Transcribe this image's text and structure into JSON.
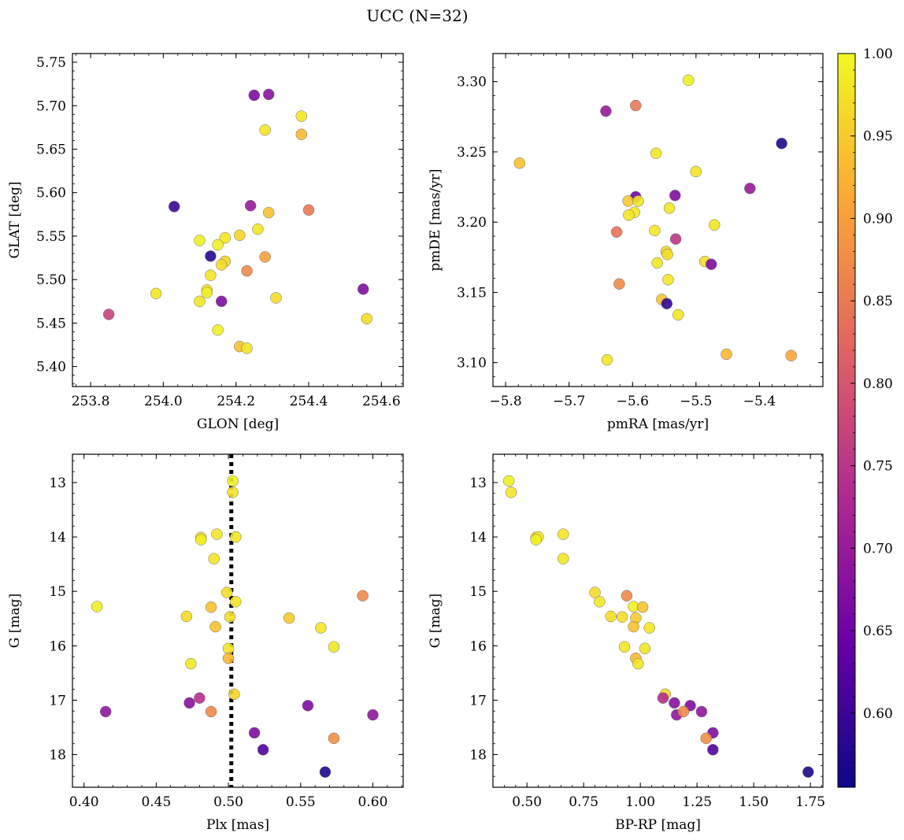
{
  "figure": {
    "title": "UCC (N=32)"
  },
  "colorbar": {
    "label": "",
    "range": [
      0.555,
      1.0
    ],
    "ticks": [
      "0.60",
      "0.65",
      "0.70",
      "0.75",
      "0.80",
      "0.85",
      "0.90",
      "0.95",
      "1.00"
    ],
    "tick_values": [
      0.6,
      0.65,
      0.7,
      0.75,
      0.8,
      0.85,
      0.9,
      0.95,
      1.0
    ],
    "colormap": "plasma",
    "colormap_stops": [
      "#0d0887",
      "#6a00a8",
      "#b12a90",
      "#e16462",
      "#fca636",
      "#f0f921"
    ]
  },
  "chart_data": [
    {
      "type": "scatter",
      "id": "glon-glat",
      "title": "",
      "xlabel": "GLON [deg]",
      "ylabel": "GLAT [deg]",
      "xlim": [
        253.75,
        254.66
      ],
      "ylim": [
        5.377,
        5.76
      ],
      "xticks": [
        253.8,
        254.0,
        254.2,
        254.4,
        254.6
      ],
      "xtick_labels": [
        "253.8",
        "254.0",
        "254.2",
        "254.4",
        "254.6"
      ],
      "yticks": [
        5.4,
        5.45,
        5.5,
        5.55,
        5.6,
        5.65,
        5.7,
        5.75
      ],
      "ytick_labels": [
        "5.40",
        "5.45",
        "5.50",
        "5.55",
        "5.60",
        "5.65",
        "5.70",
        "5.75"
      ],
      "y_inverted": false,
      "points": [
        {
          "x": 254.25,
          "y": 5.712,
          "c": 0.67
        },
        {
          "x": 254.29,
          "y": 5.713,
          "c": 0.68
        },
        {
          "x": 254.38,
          "y": 5.688,
          "c": 0.98
        },
        {
          "x": 254.28,
          "y": 5.672,
          "c": 0.98
        },
        {
          "x": 254.38,
          "y": 5.667,
          "c": 0.93
        },
        {
          "x": 254.03,
          "y": 5.584,
          "c": 0.6
        },
        {
          "x": 254.24,
          "y": 5.585,
          "c": 0.7
        },
        {
          "x": 254.29,
          "y": 5.577,
          "c": 0.94
        },
        {
          "x": 254.4,
          "y": 5.58,
          "c": 0.85
        },
        {
          "x": 254.26,
          "y": 5.558,
          "c": 0.98
        },
        {
          "x": 254.1,
          "y": 5.545,
          "c": 0.99
        },
        {
          "x": 254.17,
          "y": 5.548,
          "c": 0.98
        },
        {
          "x": 254.21,
          "y": 5.551,
          "c": 0.96
        },
        {
          "x": 254.15,
          "y": 5.54,
          "c": 0.99
        },
        {
          "x": 254.13,
          "y": 5.527,
          "c": 0.58
        },
        {
          "x": 254.28,
          "y": 5.526,
          "c": 0.9
        },
        {
          "x": 254.17,
          "y": 5.521,
          "c": 0.96
        },
        {
          "x": 254.16,
          "y": 5.517,
          "c": 0.97
        },
        {
          "x": 254.23,
          "y": 5.51,
          "c": 0.87
        },
        {
          "x": 254.13,
          "y": 5.505,
          "c": 0.98
        },
        {
          "x": 253.98,
          "y": 5.484,
          "c": 0.98
        },
        {
          "x": 254.12,
          "y": 5.488,
          "c": 0.97
        },
        {
          "x": 254.12,
          "y": 5.485,
          "c": 0.99
        },
        {
          "x": 254.1,
          "y": 5.475,
          "c": 0.98
        },
        {
          "x": 254.16,
          "y": 5.475,
          "c": 0.67
        },
        {
          "x": 254.31,
          "y": 5.479,
          "c": 0.97
        },
        {
          "x": 254.55,
          "y": 5.489,
          "c": 0.67
        },
        {
          "x": 253.85,
          "y": 5.46,
          "c": 0.77
        },
        {
          "x": 254.15,
          "y": 5.442,
          "c": 0.99
        },
        {
          "x": 254.56,
          "y": 5.455,
          "c": 0.97
        },
        {
          "x": 254.21,
          "y": 5.423,
          "c": 0.94
        },
        {
          "x": 254.23,
          "y": 5.421,
          "c": 0.98
        }
      ]
    },
    {
      "type": "scatter",
      "id": "pmra-pmde",
      "title": "",
      "xlabel": "pmRA [mas/yr]",
      "ylabel": "pmDE [mas/yr]",
      "xlim": [
        -5.82,
        -5.3
      ],
      "ylim": [
        3.083,
        3.32
      ],
      "xticks": [
        -5.8,
        -5.7,
        -5.6,
        -5.5,
        -5.4
      ],
      "xtick_labels": [
        "−5.8",
        "−5.7",
        "−5.6",
        "−5.5",
        "−5.4"
      ],
      "yticks": [
        3.1,
        3.15,
        3.2,
        3.25,
        3.3
      ],
      "ytick_labels": [
        "3.10",
        "3.15",
        "3.20",
        "3.25",
        "3.30"
      ],
      "y_inverted": false,
      "points": [
        {
          "x": -5.512,
          "y": 3.301,
          "c": 0.99
        },
        {
          "x": -5.595,
          "y": 3.283,
          "c": 0.85
        },
        {
          "x": -5.642,
          "y": 3.279,
          "c": 0.7
        },
        {
          "x": -5.365,
          "y": 3.256,
          "c": 0.57
        },
        {
          "x": -5.563,
          "y": 3.249,
          "c": 0.98
        },
        {
          "x": -5.778,
          "y": 3.242,
          "c": 0.94
        },
        {
          "x": -5.5,
          "y": 3.236,
          "c": 0.98
        },
        {
          "x": -5.415,
          "y": 3.224,
          "c": 0.7
        },
        {
          "x": -5.595,
          "y": 3.218,
          "c": 0.65
        },
        {
          "x": -5.533,
          "y": 3.219,
          "c": 0.67
        },
        {
          "x": -5.607,
          "y": 3.215,
          "c": 0.95
        },
        {
          "x": -5.591,
          "y": 3.215,
          "c": 0.98
        },
        {
          "x": -5.542,
          "y": 3.21,
          "c": 0.98
        },
        {
          "x": -5.597,
          "y": 3.207,
          "c": 0.98
        },
        {
          "x": -5.606,
          "y": 3.205,
          "c": 0.98
        },
        {
          "x": -5.471,
          "y": 3.198,
          "c": 0.98
        },
        {
          "x": -5.565,
          "y": 3.194,
          "c": 0.98
        },
        {
          "x": -5.625,
          "y": 3.193,
          "c": 0.84
        },
        {
          "x": -5.532,
          "y": 3.188,
          "c": 0.75
        },
        {
          "x": -5.547,
          "y": 3.179,
          "c": 0.96
        },
        {
          "x": -5.545,
          "y": 3.177,
          "c": 0.97
        },
        {
          "x": -5.486,
          "y": 3.172,
          "c": 0.97
        },
        {
          "x": -5.561,
          "y": 3.171,
          "c": 0.98
        },
        {
          "x": -5.476,
          "y": 3.17,
          "c": 0.67
        },
        {
          "x": -5.544,
          "y": 3.159,
          "c": 0.98
        },
        {
          "x": -5.621,
          "y": 3.156,
          "c": 0.87
        },
        {
          "x": -5.554,
          "y": 3.145,
          "c": 0.94
        },
        {
          "x": -5.546,
          "y": 3.142,
          "c": 0.59
        },
        {
          "x": -5.528,
          "y": 3.134,
          "c": 0.98
        },
        {
          "x": -5.452,
          "y": 3.106,
          "c": 0.93
        },
        {
          "x": -5.35,
          "y": 3.105,
          "c": 0.91
        },
        {
          "x": -5.64,
          "y": 3.102,
          "c": 0.98
        }
      ]
    },
    {
      "type": "scatter",
      "id": "plx-g",
      "title": "",
      "xlabel": "Plx [mas]",
      "ylabel": "G [mag]",
      "xlim": [
        0.392,
        0.621
      ],
      "ylim": [
        18.6,
        12.48
      ],
      "xticks": [
        0.4,
        0.45,
        0.5,
        0.55,
        0.6
      ],
      "xtick_labels": [
        "0.40",
        "0.45",
        "0.50",
        "0.55",
        "0.60"
      ],
      "yticks": [
        13,
        14,
        15,
        16,
        17,
        18
      ],
      "ytick_labels": [
        "13",
        "14",
        "15",
        "16",
        "17",
        "18"
      ],
      "y_inverted": true,
      "vline": {
        "x": 0.502,
        "style": "dotted"
      },
      "points": [
        {
          "x": 0.503,
          "y": 12.97,
          "c": 0.99
        },
        {
          "x": 0.503,
          "y": 13.18,
          "c": 0.98
        },
        {
          "x": 0.492,
          "y": 13.95,
          "c": 0.98
        },
        {
          "x": 0.481,
          "y": 14.01,
          "c": 0.97
        },
        {
          "x": 0.481,
          "y": 14.05,
          "c": 0.99
        },
        {
          "x": 0.505,
          "y": 14.0,
          "c": 0.98
        },
        {
          "x": 0.49,
          "y": 14.4,
          "c": 0.98
        },
        {
          "x": 0.499,
          "y": 15.02,
          "c": 0.97
        },
        {
          "x": 0.593,
          "y": 15.08,
          "c": 0.87
        },
        {
          "x": 0.505,
          "y": 15.19,
          "c": 0.98
        },
        {
          "x": 0.409,
          "y": 15.28,
          "c": 0.99
        },
        {
          "x": 0.488,
          "y": 15.29,
          "c": 0.94
        },
        {
          "x": 0.471,
          "y": 15.46,
          "c": 0.97
        },
        {
          "x": 0.501,
          "y": 15.47,
          "c": 0.97
        },
        {
          "x": 0.542,
          "y": 15.49,
          "c": 0.95
        },
        {
          "x": 0.491,
          "y": 15.65,
          "c": 0.94
        },
        {
          "x": 0.564,
          "y": 15.67,
          "c": 0.98
        },
        {
          "x": 0.573,
          "y": 16.02,
          "c": 0.98
        },
        {
          "x": 0.5,
          "y": 16.05,
          "c": 0.98
        },
        {
          "x": 0.5,
          "y": 16.23,
          "c": 0.93
        },
        {
          "x": 0.474,
          "y": 16.33,
          "c": 0.98
        },
        {
          "x": 0.504,
          "y": 16.89,
          "c": 0.96
        },
        {
          "x": 0.48,
          "y": 16.96,
          "c": 0.74
        },
        {
          "x": 0.473,
          "y": 17.05,
          "c": 0.68
        },
        {
          "x": 0.555,
          "y": 17.1,
          "c": 0.67
        },
        {
          "x": 0.415,
          "y": 17.21,
          "c": 0.69
        },
        {
          "x": 0.488,
          "y": 17.21,
          "c": 0.87
        },
        {
          "x": 0.6,
          "y": 17.27,
          "c": 0.69
        },
        {
          "x": 0.518,
          "y": 17.6,
          "c": 0.67
        },
        {
          "x": 0.573,
          "y": 17.7,
          "c": 0.88
        },
        {
          "x": 0.524,
          "y": 17.91,
          "c": 0.62
        },
        {
          "x": 0.567,
          "y": 18.32,
          "c": 0.57
        }
      ]
    },
    {
      "type": "scatter",
      "id": "bprp-g",
      "title": "",
      "xlabel": "BP-RP [mag]",
      "ylabel": "G [mag]",
      "xlim": [
        0.35,
        1.805
      ],
      "ylim": [
        18.6,
        12.48
      ],
      "xticks": [
        0.5,
        0.75,
        1.0,
        1.25,
        1.5,
        1.75
      ],
      "xtick_labels": [
        "0.50",
        "0.75",
        "1.00",
        "1.25",
        "1.50",
        "1.75"
      ],
      "yticks": [
        13,
        14,
        15,
        16,
        17,
        18
      ],
      "ytick_labels": [
        "13",
        "14",
        "15",
        "16",
        "17",
        "18"
      ],
      "y_inverted": true,
      "points": [
        {
          "x": 0.42,
          "y": 12.97,
          "c": 0.99
        },
        {
          "x": 0.43,
          "y": 13.18,
          "c": 0.98
        },
        {
          "x": 0.54,
          "y": 14.01,
          "c": 0.97
        },
        {
          "x": 0.55,
          "y": 14.0,
          "c": 0.98
        },
        {
          "x": 0.54,
          "y": 14.05,
          "c": 0.99
        },
        {
          "x": 0.66,
          "y": 13.95,
          "c": 0.98
        },
        {
          "x": 0.66,
          "y": 14.4,
          "c": 0.98
        },
        {
          "x": 0.8,
          "y": 15.02,
          "c": 0.97
        },
        {
          "x": 0.94,
          "y": 15.08,
          "c": 0.87
        },
        {
          "x": 0.82,
          "y": 15.19,
          "c": 0.98
        },
        {
          "x": 0.97,
          "y": 15.28,
          "c": 0.99
        },
        {
          "x": 1.01,
          "y": 15.29,
          "c": 0.94
        },
        {
          "x": 0.87,
          "y": 15.46,
          "c": 0.97
        },
        {
          "x": 0.92,
          "y": 15.47,
          "c": 0.97
        },
        {
          "x": 0.98,
          "y": 15.49,
          "c": 0.95
        },
        {
          "x": 0.97,
          "y": 15.65,
          "c": 0.94
        },
        {
          "x": 1.04,
          "y": 15.67,
          "c": 0.98
        },
        {
          "x": 0.93,
          "y": 16.02,
          "c": 0.98
        },
        {
          "x": 1.02,
          "y": 16.05,
          "c": 0.98
        },
        {
          "x": 0.98,
          "y": 16.23,
          "c": 0.93
        },
        {
          "x": 0.99,
          "y": 16.33,
          "c": 0.98
        },
        {
          "x": 1.11,
          "y": 16.89,
          "c": 0.96
        },
        {
          "x": 1.1,
          "y": 16.96,
          "c": 0.74
        },
        {
          "x": 1.15,
          "y": 17.05,
          "c": 0.68
        },
        {
          "x": 1.22,
          "y": 17.1,
          "c": 0.67
        },
        {
          "x": 1.16,
          "y": 17.27,
          "c": 0.69
        },
        {
          "x": 1.19,
          "y": 17.21,
          "c": 0.87
        },
        {
          "x": 1.27,
          "y": 17.21,
          "c": 0.69
        },
        {
          "x": 1.32,
          "y": 17.6,
          "c": 0.67
        },
        {
          "x": 1.29,
          "y": 17.7,
          "c": 0.88
        },
        {
          "x": 1.32,
          "y": 17.91,
          "c": 0.62
        },
        {
          "x": 1.74,
          "y": 18.32,
          "c": 0.57
        }
      ]
    }
  ]
}
